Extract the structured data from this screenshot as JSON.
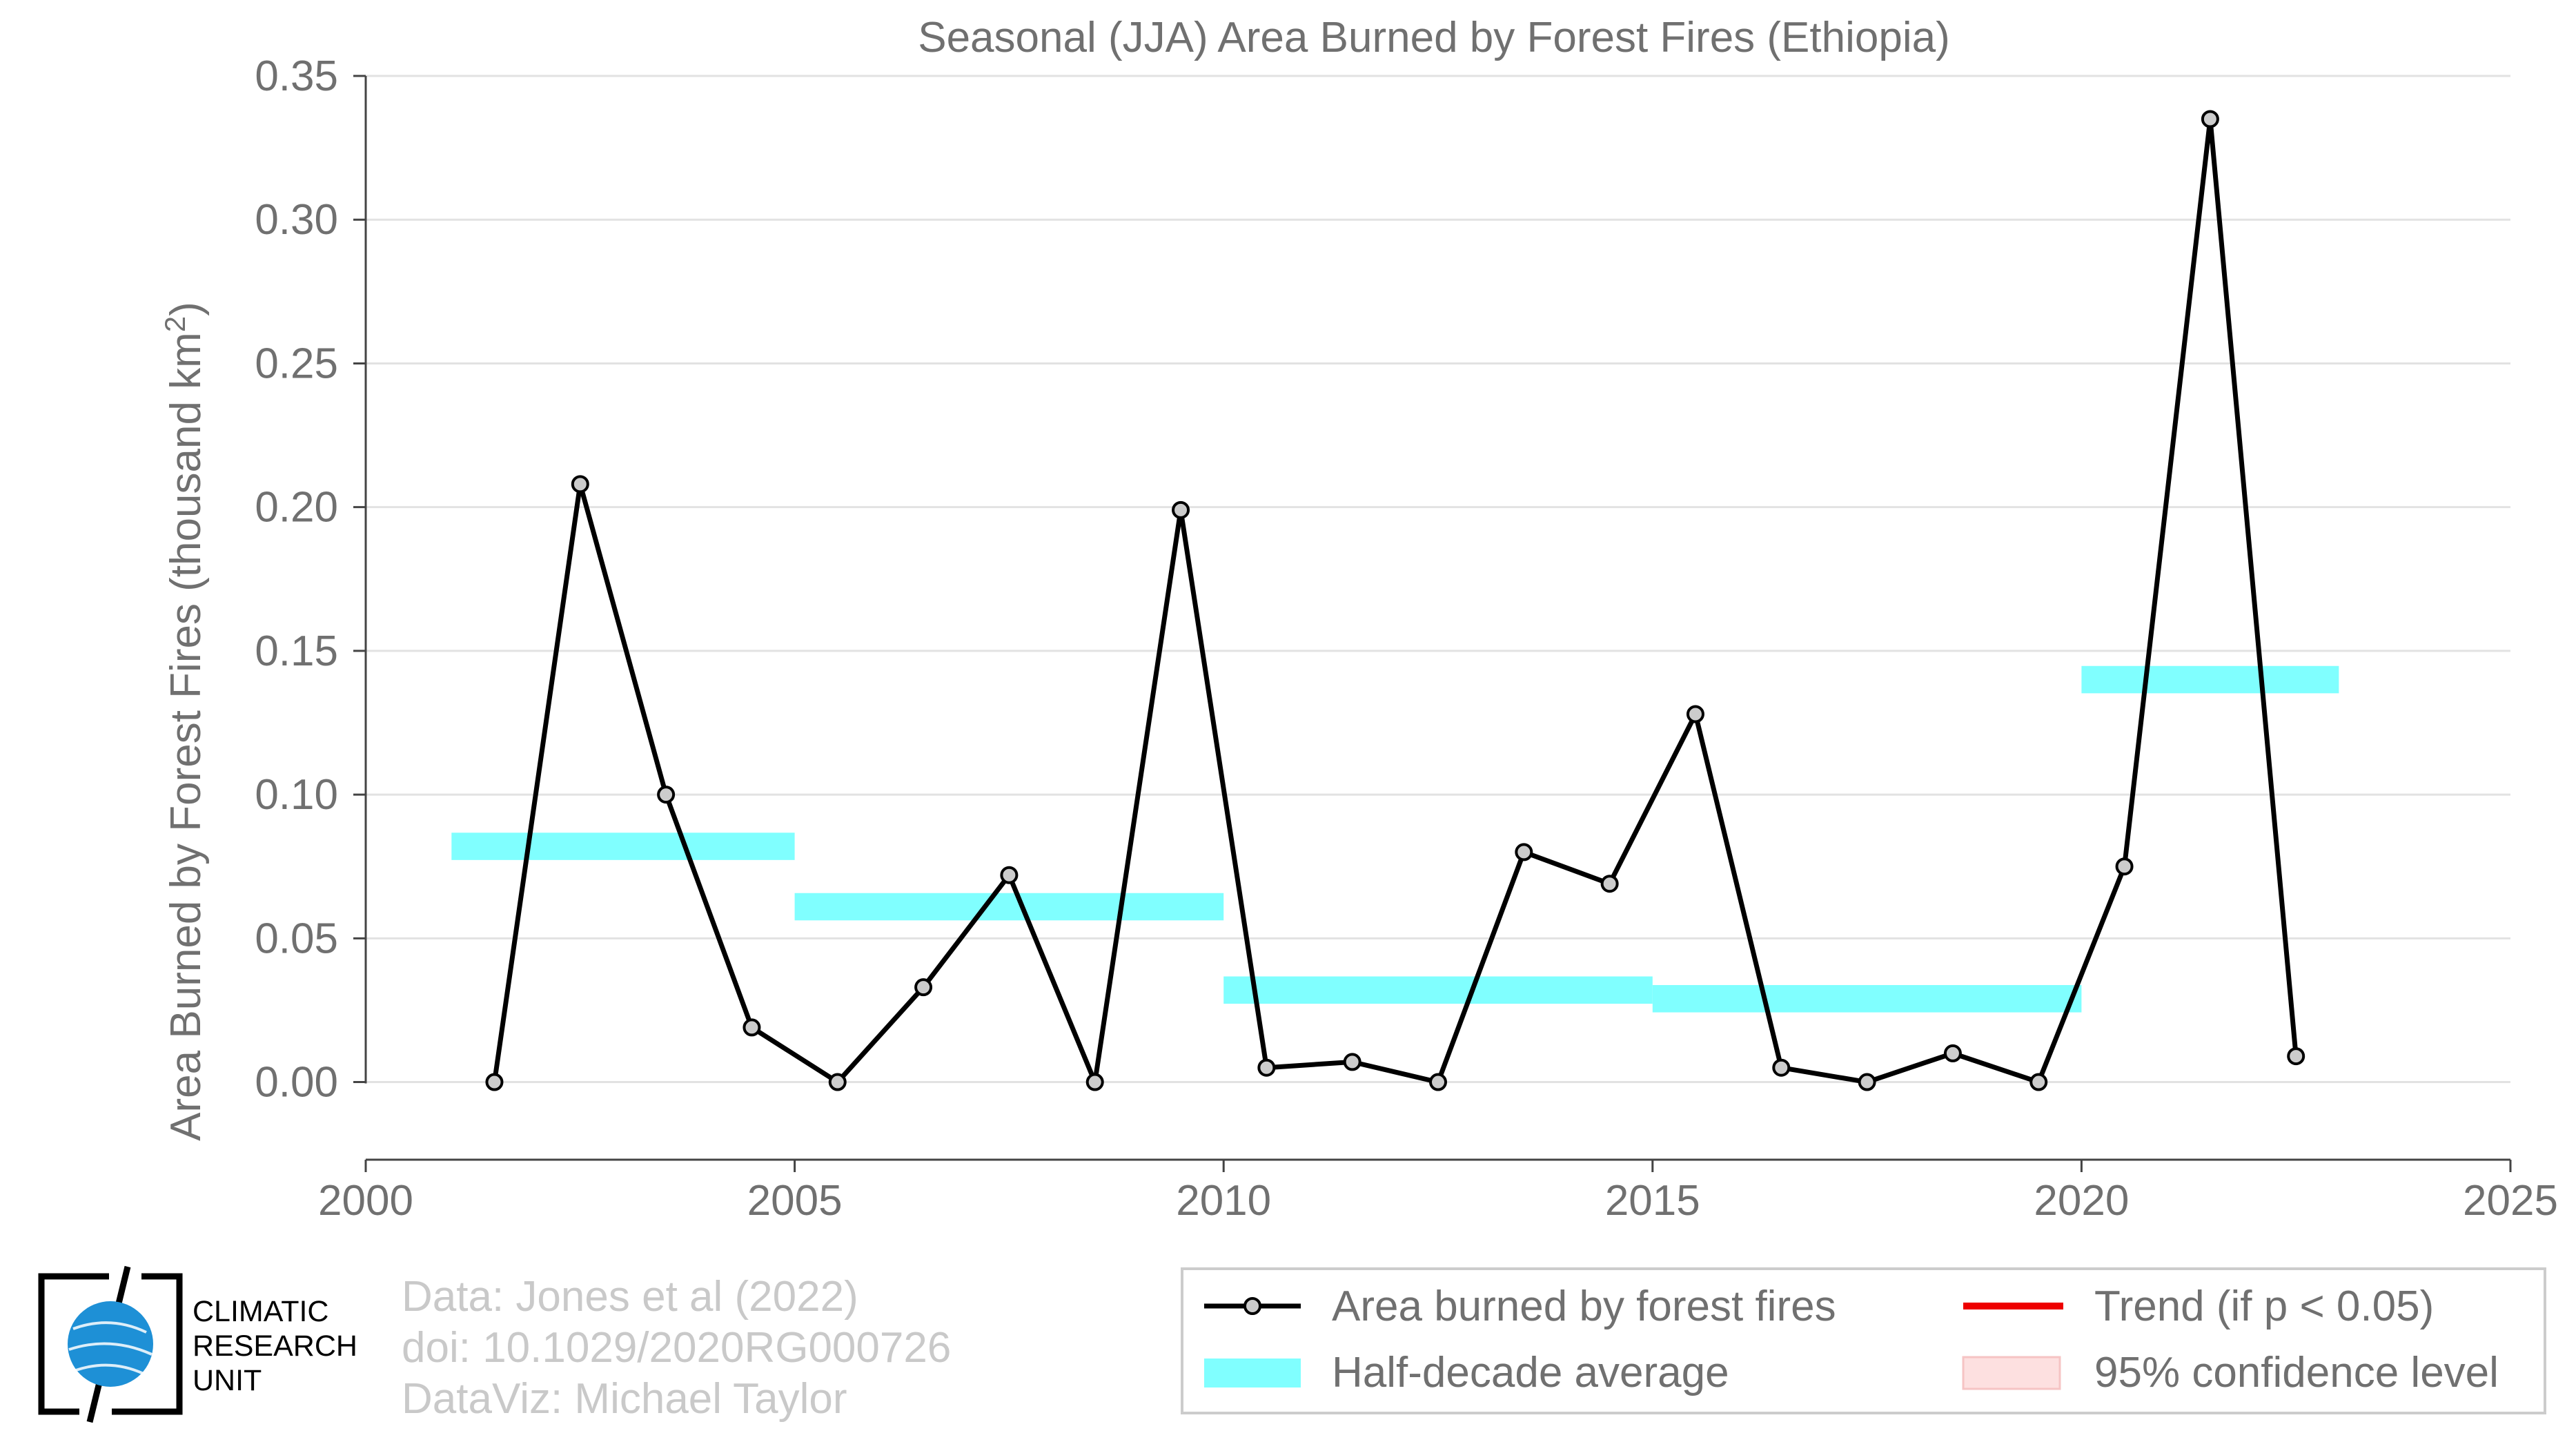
{
  "chart_data": {
    "type": "line",
    "title": "Seasonal (JJA) Area Burned by Forest Fires (Ethiopia)",
    "xlabel": "",
    "ylabel": "Area Burned by Forest Fires (thousand km",
    "ylabel_sup": "2",
    "ylabel_close": ")",
    "xlim": [
      2000,
      2025
    ],
    "ylim": [
      -0.027,
      0.35
    ],
    "xticks": [
      2000,
      2005,
      2010,
      2015,
      2020,
      2025
    ],
    "yticks": [
      0.0,
      0.05,
      0.1,
      0.15,
      0.2,
      0.25,
      0.3,
      0.35
    ],
    "ytick_labels": [
      "0.00",
      "0.05",
      "0.10",
      "0.15",
      "0.20",
      "0.25",
      "0.30",
      "0.35"
    ],
    "grid": "horizontal",
    "series": [
      {
        "name": "Area burned by forest fires",
        "color": "#000000",
        "marker_fill": "#cccccc",
        "x": [
          2001.5,
          2002.5,
          2003.5,
          2004.5,
          2005.5,
          2006.5,
          2007.5,
          2008.5,
          2009.5,
          2010.5,
          2011.5,
          2012.5,
          2013.5,
          2014.5,
          2015.5,
          2016.5,
          2017.5,
          2018.5,
          2019.5,
          2020.5,
          2021.5,
          2022.5
        ],
        "y": [
          0.0,
          0.208,
          0.1,
          0.019,
          0.0,
          0.033,
          0.072,
          0.0,
          0.199,
          0.005,
          0.007,
          0.0,
          0.08,
          0.069,
          0.128,
          0.005,
          0.0,
          0.01,
          0.0,
          0.075,
          0.335,
          0.009
        ]
      }
    ],
    "half_decade_average": {
      "name": "Half-decade average",
      "color": "#80ffff",
      "segments": [
        {
          "x0": 2001,
          "x1": 2005,
          "y": 0.082
        },
        {
          "x0": 2005,
          "x1": 2010,
          "y": 0.061
        },
        {
          "x0": 2010,
          "x1": 2015,
          "y": 0.032
        },
        {
          "x0": 2015,
          "x1": 2020,
          "y": 0.029
        },
        {
          "x0": 2020,
          "x1": 2023,
          "y": 0.14
        }
      ]
    },
    "legend": {
      "placement": "bottom-right",
      "items": [
        {
          "label": "Area burned by forest fires",
          "kind": "line-marker",
          "color": "#000000"
        },
        {
          "label": "Trend (if p < 0.05)",
          "kind": "line",
          "color": "#ee0000"
        },
        {
          "label": "Half-decade average",
          "kind": "band",
          "color": "#80ffff"
        },
        {
          "label": "95% confidence level",
          "kind": "patch",
          "color": "#fde0e0"
        }
      ]
    }
  },
  "credits": {
    "line1": "Data: Jones et al (2022)",
    "line2": "doi: 10.1029/2020RG000726",
    "line3": "DataViz: Michael Taylor"
  },
  "logo": {
    "line1": "CLIMATIC",
    "line2": "RESEARCH",
    "line3": "UNIT",
    "globe_color": "#1e90d6"
  }
}
